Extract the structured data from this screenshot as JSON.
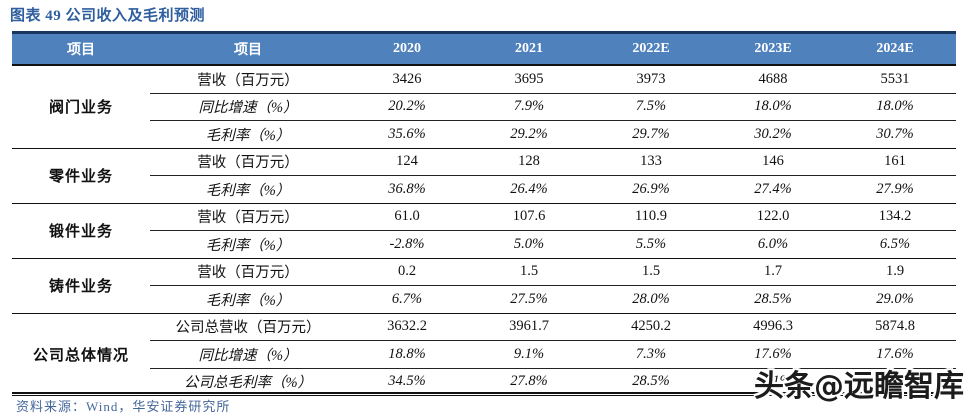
{
  "title": "图表 49 公司收入及毛利预测",
  "footer": {
    "source": "资料来源：Wind，华安证券研究所"
  },
  "watermark": "头条@远瞻智库",
  "colors": {
    "header_bg": "#4f81bd",
    "header_text": "#ffffff",
    "top_border": "#17375e",
    "title_text": "#2e5e9e",
    "source_text": "#44679b"
  },
  "table": {
    "headers": [
      "项目",
      "项目",
      "2020",
      "2021",
      "2022E",
      "2023E",
      "2024E"
    ],
    "groups": [
      {
        "name": "阀门业务",
        "rows": [
          {
            "label": "营收（百万元）",
            "italic": false,
            "values": [
              "3426",
              "3695",
              "3973",
              "4688",
              "5531"
            ]
          },
          {
            "label": "同比增速（%）",
            "italic": true,
            "values": [
              "20.2%",
              "7.9%",
              "7.5%",
              "18.0%",
              "18.0%"
            ]
          },
          {
            "label": "毛利率（%）",
            "italic": true,
            "values": [
              "35.6%",
              "29.2%",
              "29.7%",
              "30.2%",
              "30.7%"
            ]
          }
        ]
      },
      {
        "name": "零件业务",
        "rows": [
          {
            "label": "营收（百万元）",
            "italic": false,
            "values": [
              "124",
              "128",
              "133",
              "146",
              "161"
            ]
          },
          {
            "label": "毛利率（%）",
            "italic": true,
            "values": [
              "36.8%",
              "26.4%",
              "26.9%",
              "27.4%",
              "27.9%"
            ]
          }
        ]
      },
      {
        "name": "锻件业务",
        "rows": [
          {
            "label": "营收（百万元）",
            "italic": false,
            "values": [
              "61.0",
              "107.6",
              "110.9",
              "122.0",
              "134.2"
            ]
          },
          {
            "label": "毛利率（%）",
            "italic": true,
            "values": [
              "-2.8%",
              "5.0%",
              "5.5%",
              "6.0%",
              "6.5%"
            ]
          }
        ]
      },
      {
        "name": "铸件业务",
        "rows": [
          {
            "label": "营收（百万元）",
            "italic": false,
            "values": [
              "0.2",
              "1.5",
              "1.5",
              "1.7",
              "1.9"
            ]
          },
          {
            "label": "毛利率（%）",
            "italic": true,
            "values": [
              "6.7%",
              "27.5%",
              "28.0%",
              "28.5%",
              "29.0%"
            ]
          }
        ]
      },
      {
        "name": "公司总体情况",
        "rows": [
          {
            "label": "公司总营收（百万元）",
            "italic": false,
            "values": [
              "3632.2",
              "3961.7",
              "4250.2",
              "4996.3",
              "5874.8"
            ]
          },
          {
            "label": "同比增速（%）",
            "italic": true,
            "values": [
              "18.8%",
              "9.1%",
              "7.3%",
              "17.6%",
              "17.6%"
            ]
          },
          {
            "label": "公司总毛利率（%）",
            "italic": true,
            "values": [
              "34.5%",
              "27.8%",
              "28.5%",
              "29.1%",
              "29.6%"
            ]
          }
        ]
      }
    ]
  },
  "chart_data": {
    "type": "table",
    "title": "图表 49 公司收入及毛利预测",
    "columns": [
      "2020",
      "2021",
      "2022E",
      "2023E",
      "2024E"
    ],
    "rows": [
      {
        "group": "阀门业务",
        "metric": "营收（百万元）",
        "values": [
          3426,
          3695,
          3973,
          4688,
          5531
        ]
      },
      {
        "group": "阀门业务",
        "metric": "同比增速（%）",
        "values": [
          20.2,
          7.9,
          7.5,
          18.0,
          18.0
        ]
      },
      {
        "group": "阀门业务",
        "metric": "毛利率（%）",
        "values": [
          35.6,
          29.2,
          29.7,
          30.2,
          30.7
        ]
      },
      {
        "group": "零件业务",
        "metric": "营收（百万元）",
        "values": [
          124,
          128,
          133,
          146,
          161
        ]
      },
      {
        "group": "零件业务",
        "metric": "毛利率（%）",
        "values": [
          36.8,
          26.4,
          26.9,
          27.4,
          27.9
        ]
      },
      {
        "group": "锻件业务",
        "metric": "营收（百万元）",
        "values": [
          61.0,
          107.6,
          110.9,
          122.0,
          134.2
        ]
      },
      {
        "group": "锻件业务",
        "metric": "毛利率（%）",
        "values": [
          -2.8,
          5.0,
          5.5,
          6.0,
          6.5
        ]
      },
      {
        "group": "铸件业务",
        "metric": "营收（百万元）",
        "values": [
          0.2,
          1.5,
          1.5,
          1.7,
          1.9
        ]
      },
      {
        "group": "铸件业务",
        "metric": "毛利率（%）",
        "values": [
          6.7,
          27.5,
          28.0,
          28.5,
          29.0
        ]
      },
      {
        "group": "公司总体情况",
        "metric": "公司总营收（百万元）",
        "values": [
          3632.2,
          3961.7,
          4250.2,
          4996.3,
          5874.8
        ]
      },
      {
        "group": "公司总体情况",
        "metric": "同比增速（%）",
        "values": [
          18.8,
          9.1,
          7.3,
          17.6,
          17.6
        ]
      },
      {
        "group": "公司总体情况",
        "metric": "公司总毛利率（%）",
        "values": [
          34.5,
          27.8,
          28.5,
          29.1,
          29.6
        ]
      }
    ]
  }
}
